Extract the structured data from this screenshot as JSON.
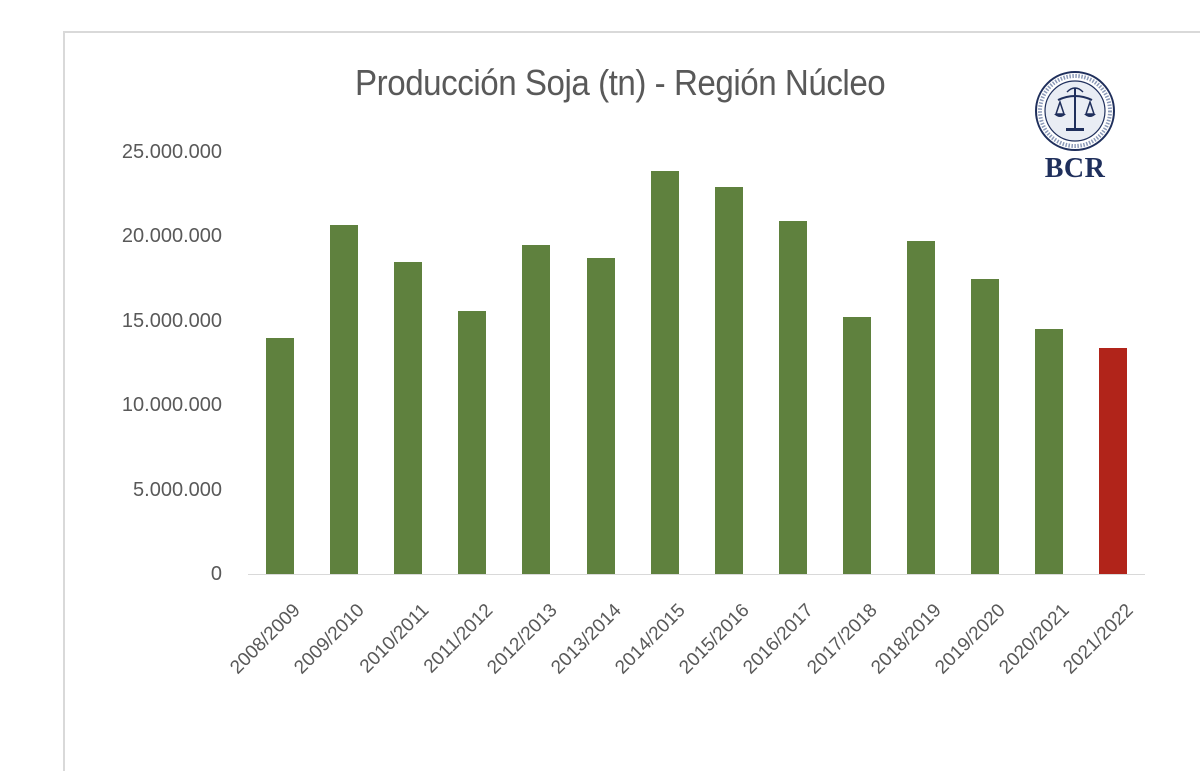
{
  "chart_data": {
    "type": "bar",
    "title": "Producción Soja (tn) - Región Núcleo",
    "xlabel": "",
    "ylabel": "",
    "ylim": [
      0,
      25000000
    ],
    "yticks": [
      "0",
      "5.000.000",
      "10.000.000",
      "15.000.000",
      "20.000.000",
      "25.000.000"
    ],
    "grid": false,
    "legend": null,
    "categories": [
      "2008/2009",
      "2009/2010",
      "2010/2011",
      "2011/2012",
      "2012/2013",
      "2013/2014",
      "2014/2015",
      "2015/2016",
      "2016/2017",
      "2017/2018",
      "2018/2019",
      "2019/2020",
      "2020/2021",
      "2021/2022"
    ],
    "values": [
      14000000,
      20700000,
      18500000,
      15600000,
      19500000,
      18700000,
      23900000,
      22900000,
      20900000,
      15200000,
      19700000,
      17500000,
      14500000,
      13400000
    ],
    "bar_colors": [
      "#5f813e",
      "#5f813e",
      "#5f813e",
      "#5f813e",
      "#5f813e",
      "#5f813e",
      "#5f813e",
      "#5f813e",
      "#5f813e",
      "#5f813e",
      "#5f813e",
      "#5f813e",
      "#5f813e",
      "#b1241a"
    ],
    "highlight": {
      "category": "2021/2022",
      "color": "#b1241a"
    }
  },
  "logo": {
    "text": "BCR",
    "icon": "bcr-seal-icon"
  },
  "colors": {
    "bar": "#5f813e",
    "highlight": "#b1241a",
    "text": "#595959",
    "logo": "#1f2f5c"
  }
}
